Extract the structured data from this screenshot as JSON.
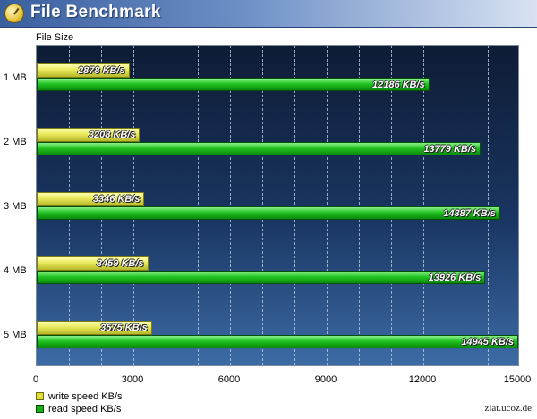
{
  "window": {
    "title": "File Benchmark"
  },
  "watermark": "zlat.ucoz.de",
  "colors": {
    "write": "#dede3a",
    "read": "#16b016",
    "plot_bg_top": "#0e1c34",
    "plot_bg_bottom": "#3c6ba5"
  },
  "chart_data": {
    "type": "bar",
    "orientation": "horizontal",
    "ylabel": "File Size",
    "categories": [
      "1 MB",
      "2 MB",
      "3 MB",
      "4 MB",
      "5 MB"
    ],
    "xlim": [
      0,
      15000
    ],
    "xticks": [
      "0",
      "3000",
      "6000",
      "9000",
      "12000",
      "15000"
    ],
    "grid": true,
    "legend_position": "bottom-left",
    "series": [
      {
        "name": "write speed KB/s",
        "values": [
          2878,
          3208,
          3346,
          3459,
          3575
        ],
        "labels": [
          "2878 KB/s",
          "3208 KB/s",
          "3346 KB/s",
          "3459 KB/s",
          "3575 KB/s"
        ]
      },
      {
        "name": "read speed KB/s",
        "values": [
          12186,
          13779,
          14387,
          13926,
          14945
        ],
        "labels": [
          "12186 KB/s",
          "13779 KB/s",
          "14387 KB/s",
          "13926 KB/s",
          "14945 KB/s"
        ]
      }
    ]
  }
}
